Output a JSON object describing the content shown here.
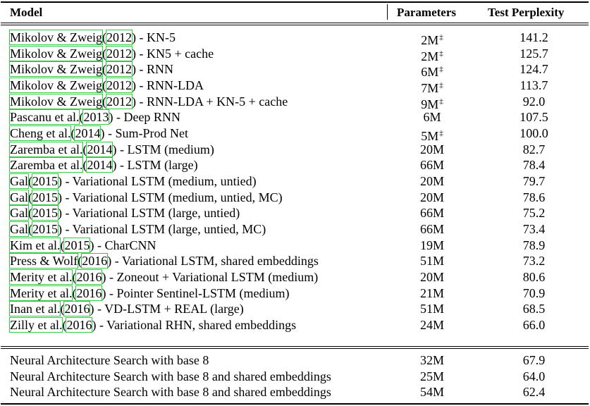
{
  "headers": {
    "model": "Model",
    "parameters": "Parameters",
    "perplexity": "Test Perplexity"
  },
  "dagger": "‡",
  "rows": [
    {
      "author": "Mikolov & Zweig",
      "open": "(",
      "year": "2012",
      "rest": ") - KN-5",
      "params": "2M",
      "dag": true,
      "ppl": "141.2"
    },
    {
      "author": "Mikolov & Zweig",
      "open": "(",
      "year": "2012",
      "rest": ") - KN5 + cache",
      "params": "2M",
      "dag": true,
      "ppl": "125.7"
    },
    {
      "author": "Mikolov & Zweig",
      "open": "(",
      "year": "2012",
      "rest": ") - RNN",
      "params": "6M",
      "dag": true,
      "ppl": "124.7"
    },
    {
      "author": "Mikolov & Zweig",
      "open": "(",
      "year": "2012",
      "rest": ") - RNN-LDA",
      "params": "7M",
      "dag": true,
      "ppl": "113.7"
    },
    {
      "author": "Mikolov & Zweig",
      "open": "(",
      "year": "2012",
      "rest": ") - RNN-LDA + KN-5 + cache",
      "params": "9M",
      "dag": true,
      "ppl": "92.0"
    },
    {
      "author": "Pascanu et al.",
      "open": "(",
      "year": "2013",
      "rest": ") - Deep RNN",
      "params": "6M",
      "dag": false,
      "ppl": "107.5"
    },
    {
      "author": "Cheng et al.",
      "open": "(",
      "year": "2014",
      "rest": ") - Sum-Prod Net",
      "params": "5M",
      "dag": true,
      "ppl": "100.0"
    },
    {
      "author": "Zaremba et al.",
      "open": "(",
      "year": "2014",
      "rest": ") - LSTM (medium)",
      "params": "20M",
      "dag": false,
      "ppl": "82.7"
    },
    {
      "author": "Zaremba et al.",
      "open": "(",
      "year": "2014",
      "rest": ") - LSTM (large)",
      "params": "66M",
      "dag": false,
      "ppl": "78.4"
    },
    {
      "author": "Gal",
      "open": "(",
      "year": "2015",
      "rest": ") - Variational LSTM (medium, untied)",
      "params": "20M",
      "dag": false,
      "ppl": "79.7"
    },
    {
      "author": "Gal",
      "open": "(",
      "year": "2015",
      "rest": ") - Variational LSTM (medium, untied, MC)",
      "params": "20M",
      "dag": false,
      "ppl": "78.6"
    },
    {
      "author": "Gal",
      "open": "(",
      "year": "2015",
      "rest": ") - Variational LSTM (large, untied)",
      "params": "66M",
      "dag": false,
      "ppl": "75.2"
    },
    {
      "author": "Gal",
      "open": "(",
      "year": "2015",
      "rest": ") - Variational LSTM (large, untied, MC)",
      "params": "66M",
      "dag": false,
      "ppl": "73.4"
    },
    {
      "author": "Kim et al.",
      "open": "(",
      "year": "2015",
      "rest": ") - CharCNN",
      "params": "19M",
      "dag": false,
      "ppl": "78.9"
    },
    {
      "author": "Press & Wolf",
      "open": "(",
      "year": "2016",
      "rest": ") - Variational LSTM, shared embeddings",
      "params": "51M",
      "dag": false,
      "ppl": "73.2"
    },
    {
      "author": "Merity et al.",
      "open": "(",
      "year": "2016",
      "rest": ") - Zoneout + Variational LSTM (medium)",
      "params": "20M",
      "dag": false,
      "ppl": "80.6"
    },
    {
      "author": "Merity et al.",
      "open": "(",
      "year": "2016",
      "rest": ") - Pointer Sentinel-LSTM (medium)",
      "params": "21M",
      "dag": false,
      "ppl": "70.9"
    },
    {
      "author": "Inan et al.",
      "open": "(",
      "year": "2016",
      "rest": ") - VD-LSTM + REAL (large)",
      "params": "51M",
      "dag": false,
      "ppl": "68.5"
    },
    {
      "author": "Zilly et al.",
      "open": "(",
      "year": "2016",
      "rest": ") - Variational RHN, shared embeddings",
      "params": "24M",
      "dag": false,
      "ppl": "66.0"
    }
  ],
  "nas_rows": [
    {
      "model": "Neural Architecture Search with base 8",
      "params": "32M",
      "ppl": "67.9"
    },
    {
      "model": "Neural Architecture Search with base 8 and shared embeddings",
      "params": "25M",
      "ppl": "64.0"
    },
    {
      "model": "Neural Architecture Search with base 8 and shared embeddings",
      "params": "54M",
      "ppl": "62.4"
    }
  ]
}
